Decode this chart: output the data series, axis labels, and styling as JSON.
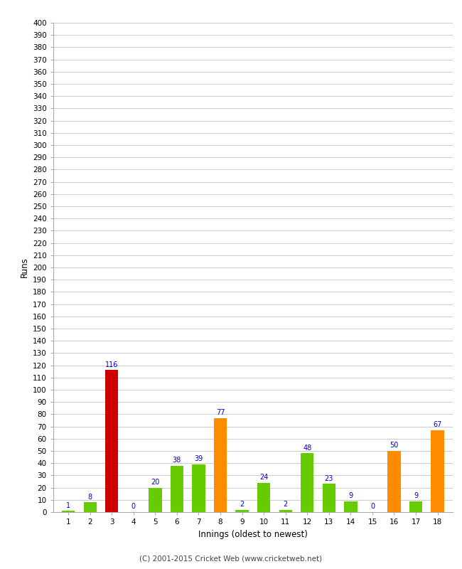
{
  "innings": [
    1,
    2,
    3,
    4,
    5,
    6,
    7,
    8,
    9,
    10,
    11,
    12,
    13,
    14,
    15,
    16,
    17,
    18
  ],
  "values": [
    1,
    8,
    116,
    0,
    20,
    38,
    39,
    77,
    2,
    24,
    2,
    48,
    23,
    9,
    0,
    50,
    9,
    67
  ],
  "colors": [
    "#66cc00",
    "#66cc00",
    "#cc0000",
    "#66cc00",
    "#66cc00",
    "#66cc00",
    "#66cc00",
    "#ff8c00",
    "#66cc00",
    "#66cc00",
    "#66cc00",
    "#66cc00",
    "#66cc00",
    "#66cc00",
    "#66cc00",
    "#ff8c00",
    "#66cc00",
    "#ff8c00"
  ],
  "xlabel": "Innings (oldest to newest)",
  "ylabel": "Runs",
  "ylim": [
    0,
    400
  ],
  "ytick_step": 10,
  "label_color": "#0000cc",
  "background_color": "#ffffff",
  "grid_color": "#cccccc",
  "footer": "(C) 2001-2015 Cricket Web (www.cricketweb.net)"
}
